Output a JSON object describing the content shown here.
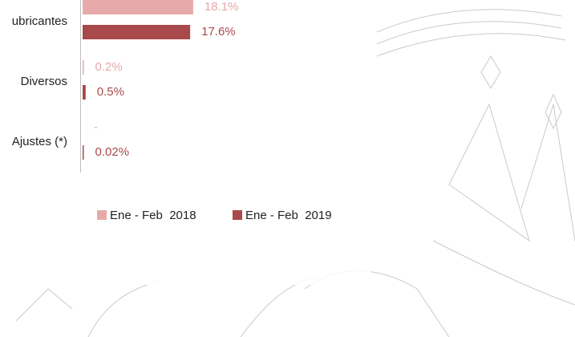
{
  "chart_data": {
    "type": "bar",
    "orientation": "horizontal",
    "categories": [
      "ubricantes",
      "Diversos",
      "Ajustes (*)"
    ],
    "series": [
      {
        "name": "Ene - Feb  2018",
        "color": "#e8a9aa",
        "values": [
          18.1,
          0.2,
          null
        ],
        "value_labels": [
          "18.1%",
          "0.2%",
          "-"
        ]
      },
      {
        "name": "Ene - Feb  2019",
        "color": "#a8494b",
        "values": [
          17.6,
          0.5,
          0.02
        ],
        "value_labels": [
          "17.6%",
          "0.5%",
          "0.02%"
        ]
      }
    ],
    "legend": "bottom"
  }
}
